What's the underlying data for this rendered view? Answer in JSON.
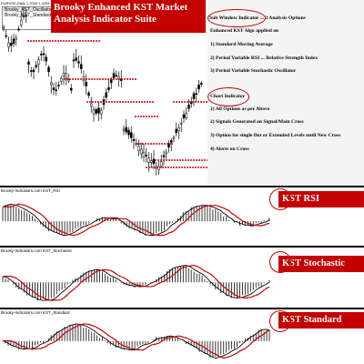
{
  "main_chart": {
    "symbol_label": "EURUSD,Daily  1.3239 1.3264 1.3241 1.3248",
    "indicator_box": [
      "Brooky_KST_Oscillator",
      "Brooky_KST_Standard"
    ],
    "title": "Brooky Enhanced KST Market Analysis Indicator Suite"
  },
  "info_panel": {
    "lines": [
      "Sub Window Indicator ... 3 Analysis Options",
      "Enhanced KST Algo applied on",
      "1) Standard Moving Average",
      "2) Period Variable RSI ... Relative Strength Index",
      "3) Period Variable Stochastic Oscillator",
      "Chart Indicator",
      "1) All Options as per Above",
      "2) Signals Generated on Signal/Main Cross",
      "3) Option for single Dot or Extended Levels until New Cross",
      "4) Alerts on Cross"
    ]
  },
  "subwindows": [
    {
      "title": "Brooky-Indicators.com KST_RSI",
      "banner": "KST RSI"
    },
    {
      "title": "Brooky-Indicators.com KST_Stochastic",
      "banner": "KST Stochastic"
    },
    {
      "title": "Brooky-Indicators.com KST_Standard",
      "banner": "KST Standard"
    }
  ],
  "colors": {
    "banner": "#c40000",
    "signal_line": "#cc0000",
    "main_line": "#000000",
    "level_marker": "#cc0000"
  }
}
